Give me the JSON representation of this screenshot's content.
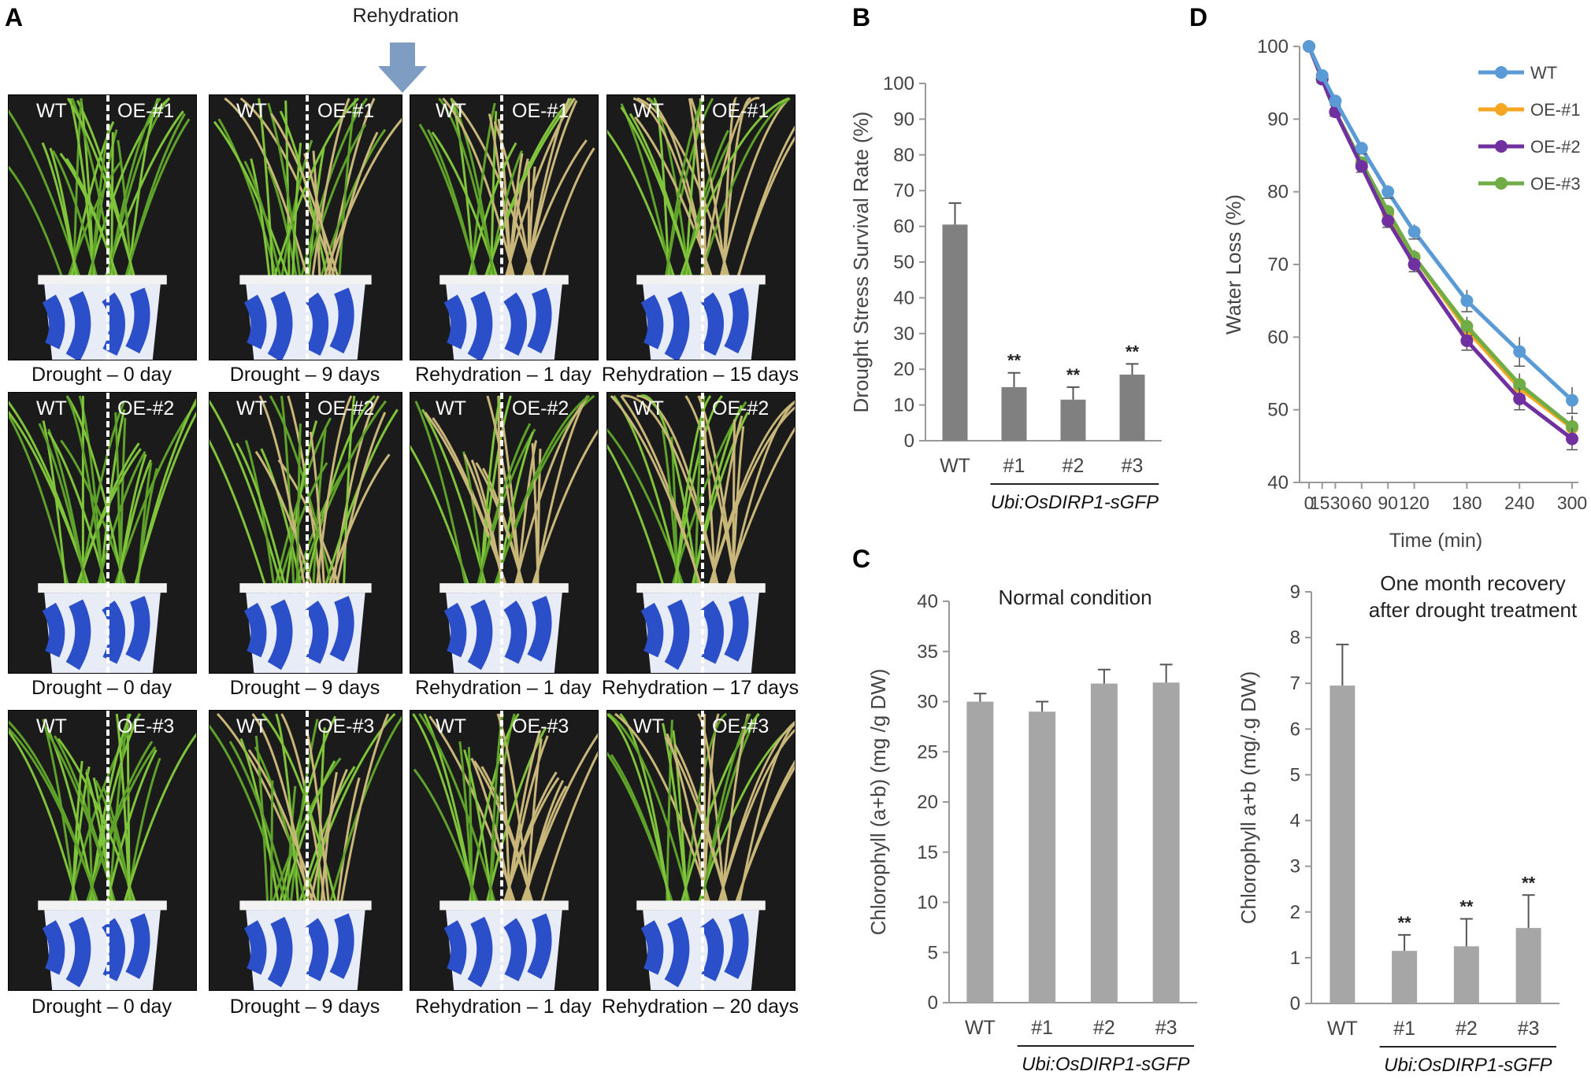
{
  "figure": {
    "panels": [
      "A",
      "B",
      "C",
      "D"
    ],
    "rehydration_label": "Rehydration",
    "photo_rows": [
      {
        "right_label": "OE-#1",
        "captions": [
          "Drought – 0 day",
          "Drought – 9 days",
          "Rehydration – 1 day",
          "Rehydration – 15 days"
        ]
      },
      {
        "right_label": "OE-#2",
        "captions": [
          "Drought – 0 day",
          "Drought – 9 days",
          "Rehydration – 1 day",
          "Rehydration – 17 days"
        ]
      },
      {
        "right_label": "OE-#3",
        "captions": [
          "Drought – 0 day",
          "Drought – 9 days",
          "Rehydration – 1 day",
          "Rehydration – 20 days"
        ]
      }
    ],
    "left_label": "WT",
    "construct_label": "Ubi:OsDIRP1-sGFP"
  },
  "colors": {
    "bar_dark": "#808080",
    "bar_light": "#a6a6a6",
    "wt": "#5b9bd5",
    "oe1": "#f5a623",
    "oe2": "#7030a0",
    "oe3": "#70ad47",
    "photo_bg": "#1b1b1b",
    "pot": "#2a4fc9"
  },
  "chart_data": [
    {
      "panel": "B",
      "type": "bar",
      "categories": [
        "WT",
        "#1",
        "#2",
        "#3"
      ],
      "values": [
        60.5,
        15,
        11.5,
        18.5
      ],
      "errors": [
        6,
        4,
        3.5,
        3
      ],
      "significance": [
        "",
        "**",
        "**",
        "**"
      ],
      "ylabel": "Drought Stress Survival Rate (%)",
      "ylim": [
        0,
        100
      ],
      "yticks": [
        "0",
        "10",
        "20",
        "30",
        "40",
        "50",
        "60",
        "70",
        "80",
        "90",
        "100"
      ],
      "group_label": "Ubi:OsDIRP1-sGFP"
    },
    {
      "panel": "C-left",
      "type": "bar",
      "title": "Normal condition",
      "categories": [
        "WT",
        "#1",
        "#2",
        "#3"
      ],
      "values": [
        30,
        29,
        31.8,
        31.9
      ],
      "errors": [
        0.8,
        1,
        1.4,
        1.8
      ],
      "ylabel": "Chlorophyll (a+b) (mg /g DW)",
      "ylim": [
        0,
        40
      ],
      "yticks": [
        "0",
        "5",
        "10",
        "15",
        "20",
        "25",
        "30",
        "35",
        "40"
      ],
      "group_label": "Ubi:OsDIRP1-sGFP"
    },
    {
      "panel": "C-right",
      "type": "bar",
      "title": [
        "One month recovery",
        "after drought treatment"
      ],
      "categories": [
        "WT",
        "#1",
        "#2",
        "#3"
      ],
      "values": [
        6.95,
        1.15,
        1.25,
        1.65
      ],
      "errors": [
        0.9,
        0.35,
        0.6,
        0.72
      ],
      "significance": [
        "",
        "**",
        "**",
        "**"
      ],
      "ylabel": "Chlorophyll a+b (mg/.g DW)",
      "ylim": [
        0,
        9
      ],
      "yticks": [
        "0",
        "1",
        "2",
        "3",
        "4",
        "5",
        "6",
        "7",
        "8",
        "9"
      ],
      "group_label": "Ubi:OsDIRP1-sGFP"
    },
    {
      "panel": "D",
      "type": "line",
      "x": [
        0,
        15,
        30,
        60,
        90,
        120,
        180,
        240,
        300
      ],
      "xticks": [
        "0",
        "15",
        "30",
        "60",
        "90",
        "120",
        "180",
        "240",
        "300"
      ],
      "xlabel": "Time (min)",
      "ylabel": "Water Loss (%)",
      "ylim": [
        40,
        100
      ],
      "yticks": [
        "40",
        "50",
        "60",
        "70",
        "80",
        "90",
        "100"
      ],
      "series": [
        {
          "name": "WT",
          "values": [
            100,
            96,
            92.5,
            86,
            80,
            74.5,
            65,
            58,
            51.3
          ],
          "errors": [
            0,
            0.5,
            0.6,
            0.8,
            0.9,
            1,
            1.5,
            2,
            1.8
          ]
        },
        {
          "name": "OE-#1",
          "values": [
            100,
            95.5,
            91,
            84,
            77,
            71,
            61,
            53,
            47.5
          ],
          "errors": [
            0,
            0.5,
            0.6,
            0.8,
            0.9,
            1,
            1.3,
            1.5,
            1.5
          ]
        },
        {
          "name": "OE-#2",
          "values": [
            100,
            95.5,
            91,
            83.5,
            76,
            70,
            59.5,
            51.5,
            46
          ],
          "errors": [
            0,
            0.5,
            0.6,
            0.8,
            0.9,
            1,
            1.3,
            1.5,
            1.5
          ]
        },
        {
          "name": "OE-#3",
          "values": [
            100,
            95.5,
            91,
            84,
            77.3,
            71,
            61.5,
            53.5,
            47.7
          ],
          "errors": [
            0,
            0.5,
            0.6,
            0.8,
            0.9,
            1,
            1.3,
            1.5,
            1.5
          ]
        }
      ]
    }
  ]
}
